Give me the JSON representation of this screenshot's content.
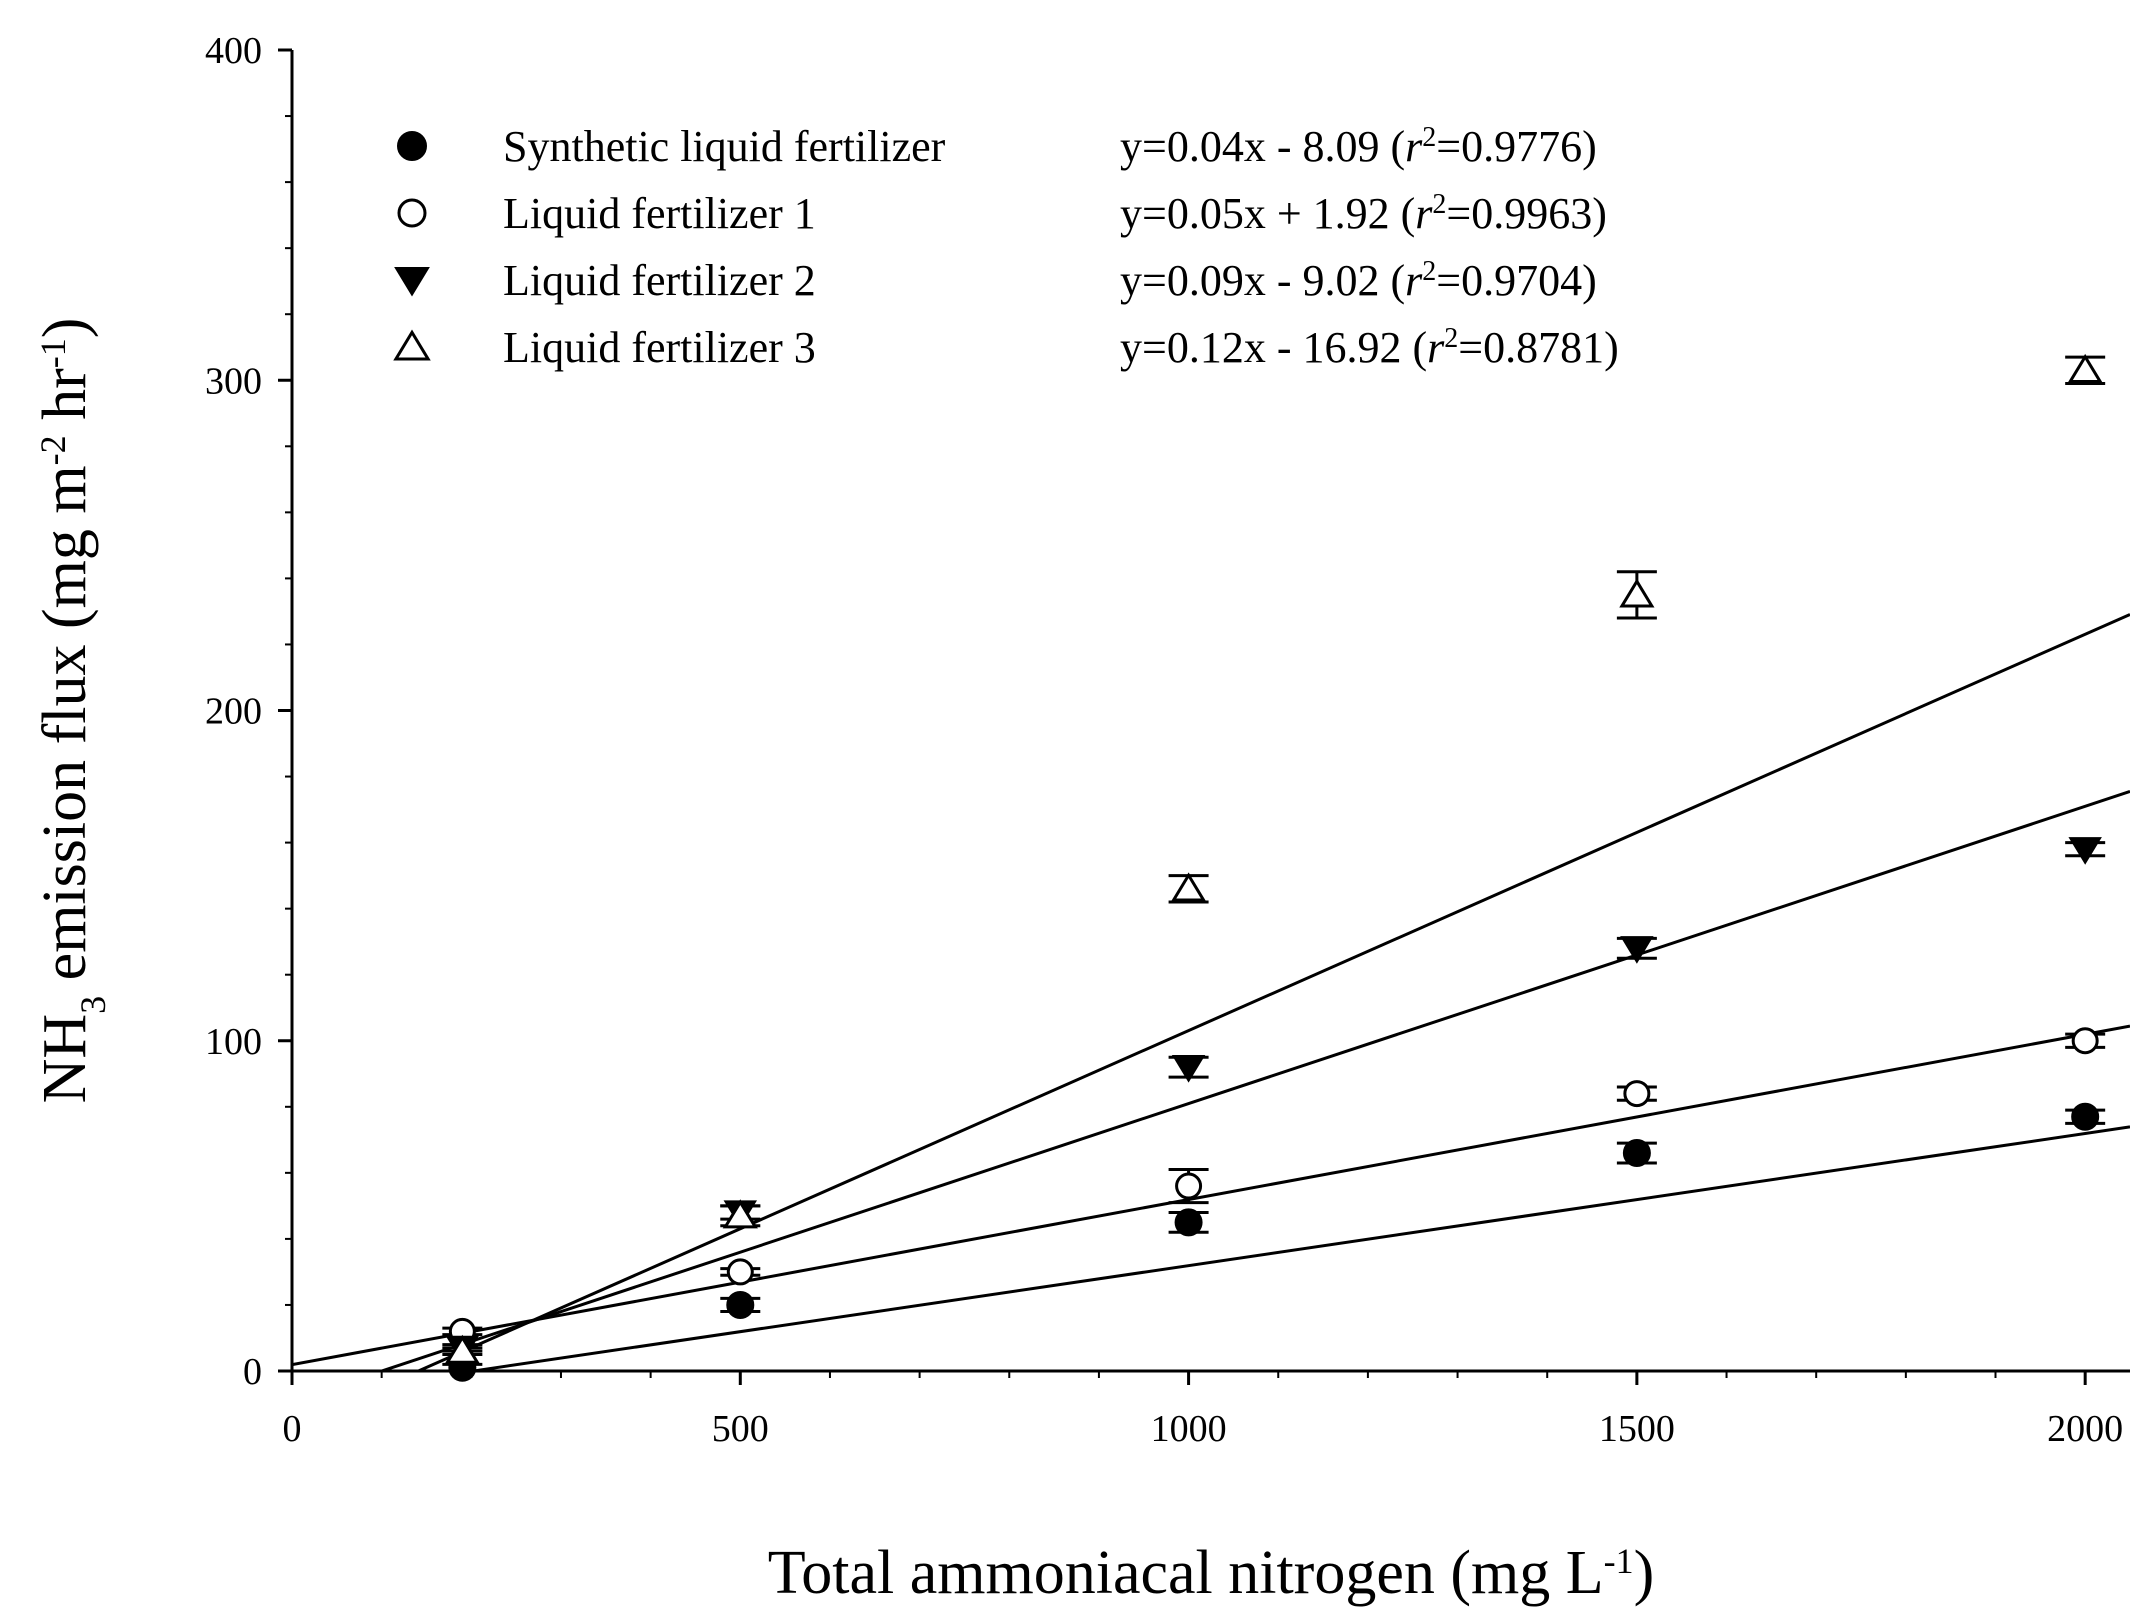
{
  "chart_data": {
    "type": "scatter",
    "title": "",
    "xlabel": {
      "main": "Total ammoniacal nitrogen (mg L",
      "sup": "-1",
      "close": ")"
    },
    "ylabel": {
      "pre": "NH",
      "sub": "3",
      "mid": " emission flux (mg m",
      "sup1": "-2",
      "mid2": " hr",
      "sup2": "-1",
      "close": ")"
    },
    "xlim": [
      0,
      2050
    ],
    "ylim": [
      0,
      400
    ],
    "xticks": [
      0,
      500,
      1000,
      1500,
      2000
    ],
    "yticks": [
      0,
      100,
      200,
      300,
      400
    ],
    "legend_position": "top-left",
    "series": [
      {
        "name": "Synthetic liquid fertilizer",
        "marker": "filled-circle",
        "eq_pre": "y=0.04x - 8.09 (",
        "eq_r": "r",
        "eq_sup": "2",
        "eq_post": "=0.9776)",
        "slope": 0.04,
        "intercept": -8.09,
        "fit_range": [
          200,
          2050
        ],
        "points": [
          {
            "x": 190,
            "y": 1,
            "err": 1
          },
          {
            "x": 500,
            "y": 20,
            "err": 2
          },
          {
            "x": 1000,
            "y": 45,
            "err": 3
          },
          {
            "x": 1500,
            "y": 66,
            "err": 3
          },
          {
            "x": 2000,
            "y": 77,
            "err": 2
          }
        ]
      },
      {
        "name": "Liquid fertilizer 1",
        "marker": "open-circle",
        "eq_pre": "y=0.05x + 1.92 (",
        "eq_r": "r",
        "eq_sup": "2",
        "eq_post": "=0.9963)",
        "slope": 0.05,
        "intercept": 1.92,
        "fit_range": [
          0,
          2050
        ],
        "points": [
          {
            "x": 190,
            "y": 12,
            "err": 1
          },
          {
            "x": 500,
            "y": 30,
            "err": 1
          },
          {
            "x": 1000,
            "y": 56,
            "err": 5
          },
          {
            "x": 1500,
            "y": 84,
            "err": 2
          },
          {
            "x": 2000,
            "y": 100,
            "err": 2
          }
        ]
      },
      {
        "name": "Liquid fertilizer 2",
        "marker": "filled-triangle-down",
        "eq_pre": "y=0.09x - 9.02 (",
        "eq_r": "r",
        "eq_sup": "2",
        "eq_post": "=0.9704)",
        "slope": 0.09,
        "intercept": -9.02,
        "fit_range": [
          100,
          2050
        ],
        "points": [
          {
            "x": 190,
            "y": 7,
            "err": 1
          },
          {
            "x": 500,
            "y": 48,
            "err": 2
          },
          {
            "x": 1000,
            "y": 92,
            "err": 3
          },
          {
            "x": 1500,
            "y": 128,
            "err": 3
          },
          {
            "x": 2000,
            "y": 158,
            "err": 2
          }
        ]
      },
      {
        "name": "Liquid fertilizer 3",
        "marker": "open-triangle-up",
        "eq_pre": "y=0.12x - 16.92 (",
        "eq_r": "r",
        "eq_sup": "2",
        "eq_post": "=0.8781)",
        "slope": 0.12,
        "intercept": -16.92,
        "fit_range": [
          140,
          2050
        ],
        "points": [
          {
            "x": 190,
            "y": 6,
            "err": 1
          },
          {
            "x": 500,
            "y": 47,
            "err": 3
          },
          {
            "x": 1000,
            "y": 146,
            "err": 4
          },
          {
            "x": 1500,
            "y": 235,
            "err": 7
          },
          {
            "x": 2000,
            "y": 303,
            "err": 4
          }
        ]
      }
    ]
  }
}
